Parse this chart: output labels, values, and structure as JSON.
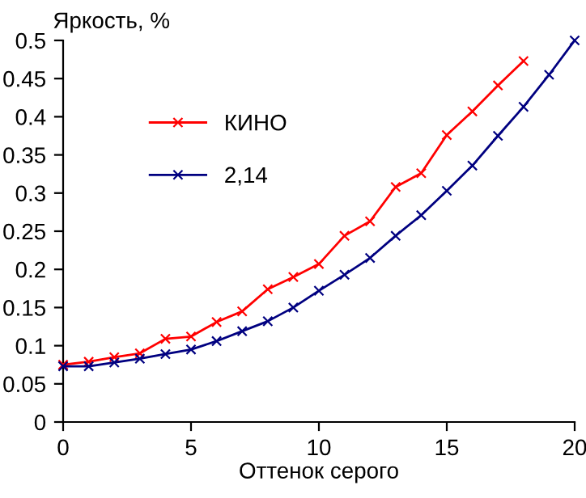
{
  "chart_data": {
    "type": "line",
    "ylabel": "Яркость, %",
    "xlabel": "Оттенок серого",
    "xlim": [
      0,
      20
    ],
    "ylim": [
      0,
      0.5
    ],
    "xticks": [
      0,
      5,
      10,
      15,
      20
    ],
    "yticks": [
      0,
      0.05,
      0.1,
      0.15,
      0.2,
      0.25,
      0.3,
      0.35,
      0.4,
      0.45,
      0.5
    ],
    "grid": false,
    "legend": "top left",
    "marker": "cross",
    "line_style": "solid",
    "series": [
      {
        "name": "КИНО",
        "color": "#ff0000",
        "x": [
          0,
          1,
          2,
          3,
          4,
          5,
          6,
          7,
          8,
          9,
          10,
          11,
          12,
          13,
          14,
          15,
          16,
          17,
          18
        ],
        "values": [
          0.075,
          0.079,
          0.085,
          0.09,
          0.109,
          0.112,
          0.131,
          0.145,
          0.174,
          0.19,
          0.207,
          0.244,
          0.263,
          0.308,
          0.326,
          0.376,
          0.407,
          0.441,
          0.473
        ]
      },
      {
        "name": "2,14",
        "color": "#000080",
        "x": [
          0,
          1,
          2,
          3,
          4,
          5,
          6,
          7,
          8,
          9,
          10,
          11,
          12,
          13,
          14,
          15,
          16,
          17,
          18,
          19,
          20
        ],
        "values": [
          0.073,
          0.073,
          0.078,
          0.083,
          0.089,
          0.095,
          0.106,
          0.119,
          0.132,
          0.15,
          0.172,
          0.193,
          0.215,
          0.244,
          0.271,
          0.303,
          0.336,
          0.375,
          0.413,
          0.455,
          0.5
        ]
      }
    ]
  }
}
